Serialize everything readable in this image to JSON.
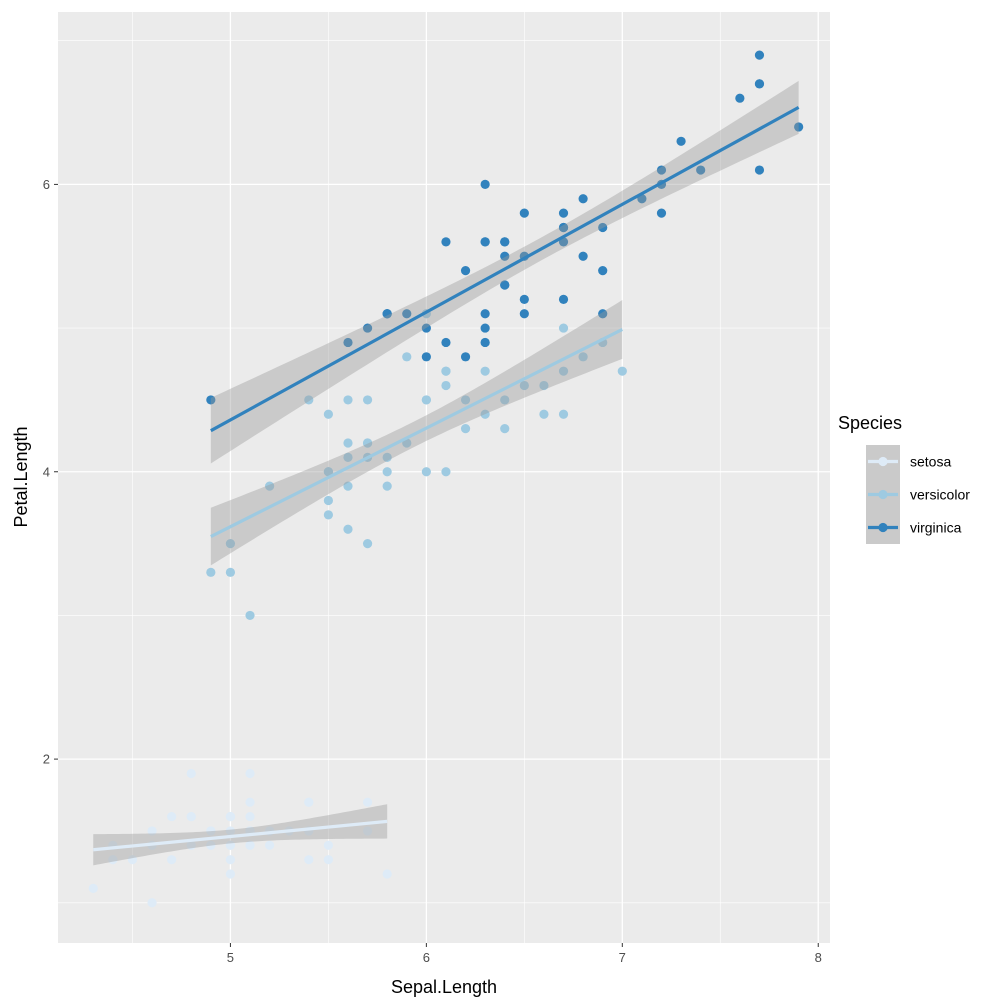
{
  "chart_data": {
    "type": "scatter",
    "title": "",
    "xlabel": "Sepal.Length",
    "ylabel": "Petal.Length",
    "xlim": [
      4.12,
      8.06
    ],
    "ylim": [
      0.72,
      7.2
    ],
    "xticks": [
      5,
      6,
      7,
      8
    ],
    "yticks": [
      2,
      4,
      6
    ],
    "x_minor": [
      4.5,
      5.5,
      6.5,
      7.5
    ],
    "y_minor": [
      1,
      3,
      5,
      7
    ],
    "grid": true,
    "background": "#EBEBEB",
    "smooth": {
      "method": "lm",
      "se": true,
      "level": 0.95,
      "ribbon_color": "#999999"
    },
    "legend": {
      "title": "Species",
      "placement": "right"
    },
    "series": [
      {
        "name": "setosa",
        "color": "#DEEBF7",
        "x": [
          5.1,
          4.9,
          4.7,
          4.6,
          5.0,
          5.4,
          4.6,
          5.0,
          4.4,
          4.9,
          5.4,
          4.8,
          4.8,
          4.3,
          5.8,
          5.7,
          5.4,
          5.1,
          5.7,
          5.1,
          5.4,
          5.1,
          4.6,
          5.1,
          4.8,
          5.0,
          5.0,
          5.2,
          5.2,
          4.7,
          4.8,
          5.4,
          5.2,
          5.5,
          4.9,
          5.0,
          5.5,
          4.9,
          4.4,
          5.1,
          5.0,
          4.5,
          4.4,
          5.0,
          5.1,
          4.8,
          5.1,
          4.6,
          5.3,
          5.0
        ],
        "y": [
          1.4,
          1.4,
          1.3,
          1.5,
          1.4,
          1.7,
          1.4,
          1.5,
          1.4,
          1.5,
          1.5,
          1.6,
          1.4,
          1.1,
          1.2,
          1.5,
          1.3,
          1.4,
          1.7,
          1.5,
          1.7,
          1.5,
          1.0,
          1.7,
          1.9,
          1.6,
          1.6,
          1.5,
          1.4,
          1.6,
          1.6,
          1.5,
          1.5,
          1.4,
          1.5,
          1.2,
          1.3,
          1.4,
          1.3,
          1.5,
          1.3,
          1.3,
          1.3,
          1.6,
          1.9,
          1.4,
          1.6,
          1.4,
          1.5,
          1.4
        ]
      },
      {
        "name": "versicolor",
        "color": "#9ECAE1",
        "x": [
          7.0,
          6.4,
          6.9,
          5.5,
          6.5,
          5.7,
          6.3,
          4.9,
          6.6,
          5.2,
          5.0,
          5.9,
          6.0,
          6.1,
          5.6,
          6.7,
          5.6,
          5.8,
          6.2,
          5.6,
          5.9,
          6.1,
          6.3,
          6.1,
          6.4,
          6.6,
          6.8,
          6.7,
          6.0,
          5.7,
          5.5,
          5.5,
          5.8,
          6.0,
          5.4,
          6.0,
          6.7,
          6.3,
          5.6,
          5.5,
          5.5,
          6.1,
          5.8,
          5.0,
          5.6,
          5.7,
          5.7,
          6.2,
          5.1,
          5.7
        ],
        "y": [
          4.7,
          4.5,
          4.9,
          4.0,
          4.6,
          4.5,
          4.7,
          3.3,
          4.6,
          3.9,
          3.5,
          4.2,
          4.0,
          4.7,
          3.6,
          4.4,
          4.5,
          4.1,
          4.5,
          3.9,
          4.8,
          4.0,
          4.9,
          4.7,
          4.3,
          4.4,
          4.8,
          5.0,
          4.5,
          3.5,
          3.8,
          3.7,
          3.9,
          5.1,
          4.5,
          4.5,
          4.7,
          4.4,
          4.1,
          4.0,
          4.4,
          4.6,
          4.0,
          3.3,
          4.2,
          4.2,
          4.2,
          4.3,
          3.0,
          4.1
        ]
      },
      {
        "name": "virginica",
        "color": "#3182BD",
        "x": [
          6.3,
          5.8,
          7.1,
          6.3,
          6.5,
          7.6,
          4.9,
          7.3,
          6.7,
          7.2,
          6.5,
          6.4,
          6.8,
          5.7,
          5.8,
          6.4,
          6.5,
          7.7,
          7.7,
          6.0,
          6.9,
          5.6,
          7.7,
          6.3,
          6.7,
          7.2,
          6.2,
          6.1,
          6.4,
          7.2,
          7.4,
          7.9,
          6.4,
          6.3,
          6.1,
          7.7,
          6.3,
          6.4,
          6.0,
          6.9,
          6.7,
          6.9,
          5.8,
          6.8,
          6.7,
          6.7,
          6.3,
          6.5,
          6.2,
          5.9
        ],
        "y": [
          6.0,
          5.1,
          5.9,
          5.6,
          5.8,
          6.6,
          4.5,
          6.3,
          5.8,
          6.1,
          5.1,
          5.3,
          5.5,
          5.0,
          5.1,
          5.3,
          5.5,
          6.7,
          6.9,
          5.0,
          5.7,
          4.9,
          6.7,
          4.9,
          5.7,
          6.0,
          4.8,
          4.9,
          5.6,
          5.8,
          6.1,
          6.4,
          5.6,
          5.1,
          5.6,
          6.1,
          5.6,
          5.5,
          4.8,
          5.4,
          5.6,
          5.1,
          5.1,
          5.9,
          5.7,
          5.2,
          5.0,
          5.2,
          5.4,
          5.1
        ]
      }
    ]
  }
}
